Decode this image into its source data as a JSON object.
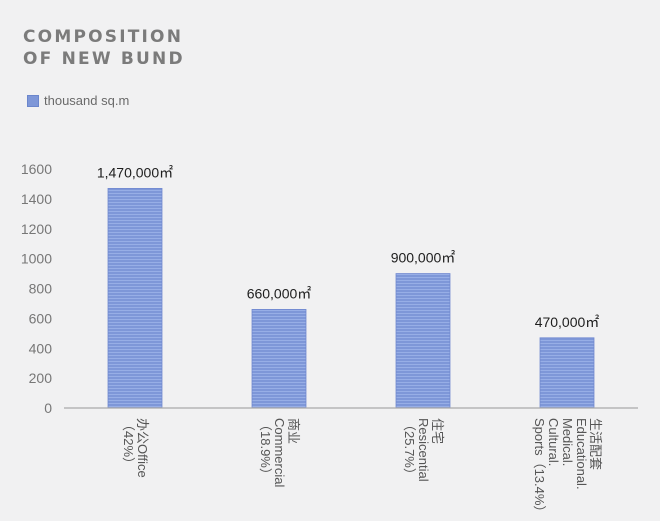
{
  "title_lines": [
    "COMPOSITION",
    "OF NEW BUND"
  ],
  "legend_label": "thousand sq.m",
  "colors": {
    "bar": "#7e97d8",
    "bar_stripe": "#97aee6",
    "axis": "#aaaaaa",
    "title": "#7b7b7b"
  },
  "chart_data": {
    "type": "bar",
    "title": "COMPOSITION OF NEW BUND",
    "ylim": [
      0,
      1600
    ],
    "yticks": [
      0,
      200,
      400,
      600,
      800,
      1000,
      1200,
      1400,
      1600
    ],
    "grid": false,
    "legend_position": "top-left",
    "series": [
      {
        "name": "thousand sq.m",
        "values": [
          1470,
          660,
          900,
          470
        ]
      }
    ],
    "categories": [
      {
        "lines": [
          "办公Office",
          "（42%）"
        ]
      },
      {
        "lines": [
          "商业",
          "Commercial",
          "（18.9%）"
        ]
      },
      {
        "lines": [
          "住宅",
          "Resicential",
          "（25.7%）"
        ]
      },
      {
        "lines": [
          "生活配套",
          "Educational.",
          "Medical.",
          "Cultural.",
          "Sports（13.4%）"
        ]
      }
    ],
    "data_labels": [
      "1,470,000㎡",
      "660,000㎡",
      "900,000㎡",
      "470,000㎡"
    ]
  }
}
